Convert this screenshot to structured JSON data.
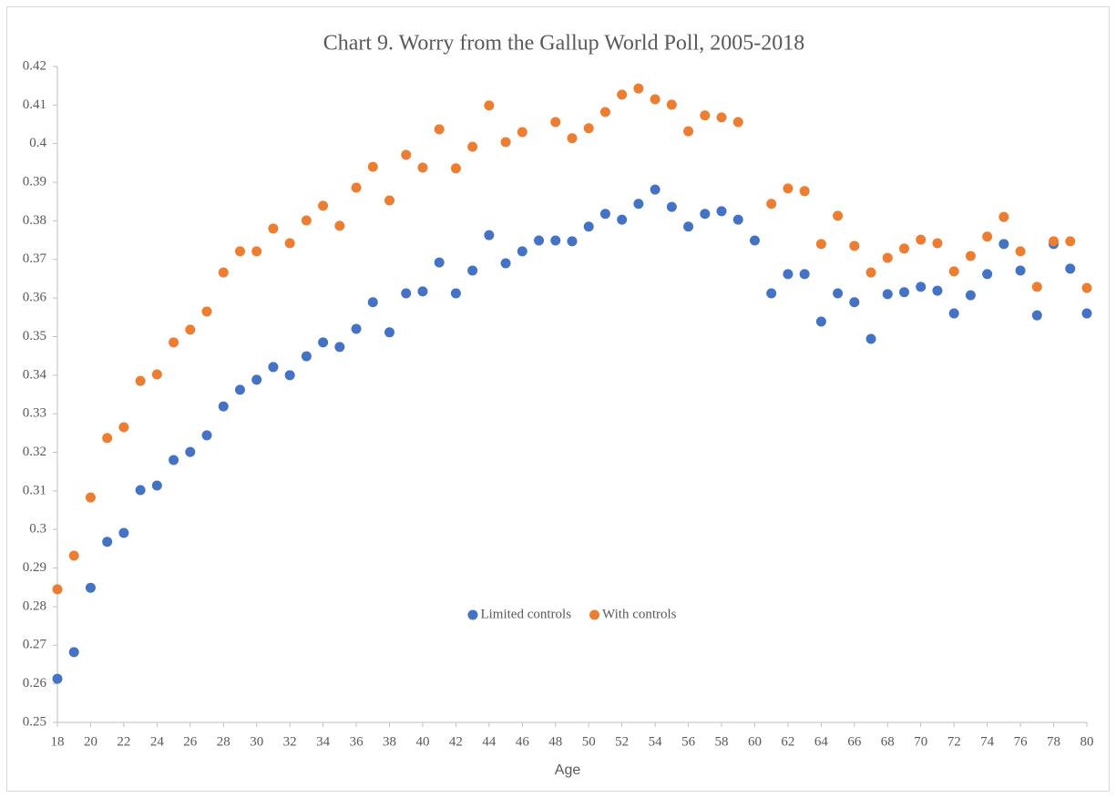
{
  "chart_data": {
    "type": "scatter",
    "title": "Chart 9. Worry from the Gallup World Poll, 2005-2018",
    "x_label": "Age",
    "x": [
      18,
      19,
      20,
      21,
      22,
      23,
      24,
      25,
      26,
      27,
      28,
      29,
      30,
      31,
      32,
      33,
      34,
      35,
      36,
      37,
      38,
      39,
      40,
      41,
      42,
      43,
      44,
      45,
      46,
      47,
      48,
      49,
      50,
      51,
      52,
      53,
      54,
      55,
      56,
      57,
      58,
      59,
      60,
      61,
      62,
      63,
      64,
      65,
      66,
      67,
      68,
      69,
      70,
      71,
      72,
      73,
      74,
      75,
      76,
      77,
      78,
      79,
      80
    ],
    "series": [
      {
        "name": "Limited controls",
        "color": "#4472c4",
        "values": [
          0.2613,
          0.2682,
          0.2849,
          0.2968,
          0.2991,
          0.3102,
          0.3114,
          0.318,
          0.3201,
          0.3244,
          0.3319,
          0.3362,
          0.3388,
          0.3421,
          0.34,
          0.3449,
          0.3485,
          0.3473,
          0.352,
          0.3589,
          0.3511,
          0.3612,
          0.3617,
          0.3692,
          0.3612,
          0.3671,
          0.3763,
          0.369,
          0.3721,
          0.3749,
          0.3749,
          0.3747,
          0.3785,
          0.3818,
          0.3803,
          0.3844,
          0.3881,
          0.3836,
          0.3785,
          0.3818,
          0.3825,
          0.3803,
          0.3749,
          0.3612,
          0.3662,
          0.3662,
          0.3539,
          0.3612,
          0.3589,
          0.3494,
          0.361,
          0.3615,
          0.3629,
          0.3619,
          0.356,
          0.3607,
          0.3662,
          0.374,
          0.3671,
          0.3555,
          0.374,
          0.3676,
          0.356
        ]
      },
      {
        "name": "With controls",
        "color": "#ed7d31",
        "values": [
          0.2845,
          0.2932,
          0.3083,
          0.3237,
          0.3265,
          0.3385,
          0.3402,
          0.3485,
          0.3518,
          0.3565,
          0.3666,
          0.3721,
          0.3721,
          0.378,
          0.3742,
          0.3801,
          0.3839,
          0.3787,
          0.3886,
          0.394,
          0.3853,
          0.3971,
          0.3938,
          0.4037,
          0.3936,
          0.3992,
          0.4099,
          0.4004,
          0.403,
          null,
          0.4056,
          0.4014,
          0.404,
          0.4082,
          0.4127,
          0.4143,
          0.4115,
          0.4101,
          0.4032,
          0.4073,
          0.4068,
          0.4056,
          null,
          0.3844,
          0.3884,
          0.3877,
          0.374,
          0.3813,
          0.3735,
          0.3666,
          0.3704,
          0.3728,
          0.3751,
          0.3742,
          0.3669,
          0.3709,
          0.3759,
          0.381,
          0.3721,
          0.3629,
          0.3747,
          0.3747,
          0.3626
        ]
      }
    ],
    "xlim": [
      18,
      80
    ],
    "xticks": [
      18,
      20,
      22,
      24,
      26,
      28,
      30,
      32,
      34,
      36,
      38,
      40,
      42,
      44,
      46,
      48,
      50,
      52,
      54,
      56,
      58,
      60,
      62,
      64,
      66,
      68,
      70,
      72,
      74,
      76,
      78,
      80
    ],
    "ylim": [
      0.25,
      0.42
    ],
    "yticks": [
      0.25,
      0.26,
      0.27,
      0.28,
      0.29,
      0.3,
      0.31,
      0.32,
      0.33,
      0.34,
      0.35,
      0.36,
      0.37,
      0.38,
      0.39,
      0.4,
      0.41,
      0.42
    ],
    "grid": false,
    "legend": "center"
  }
}
